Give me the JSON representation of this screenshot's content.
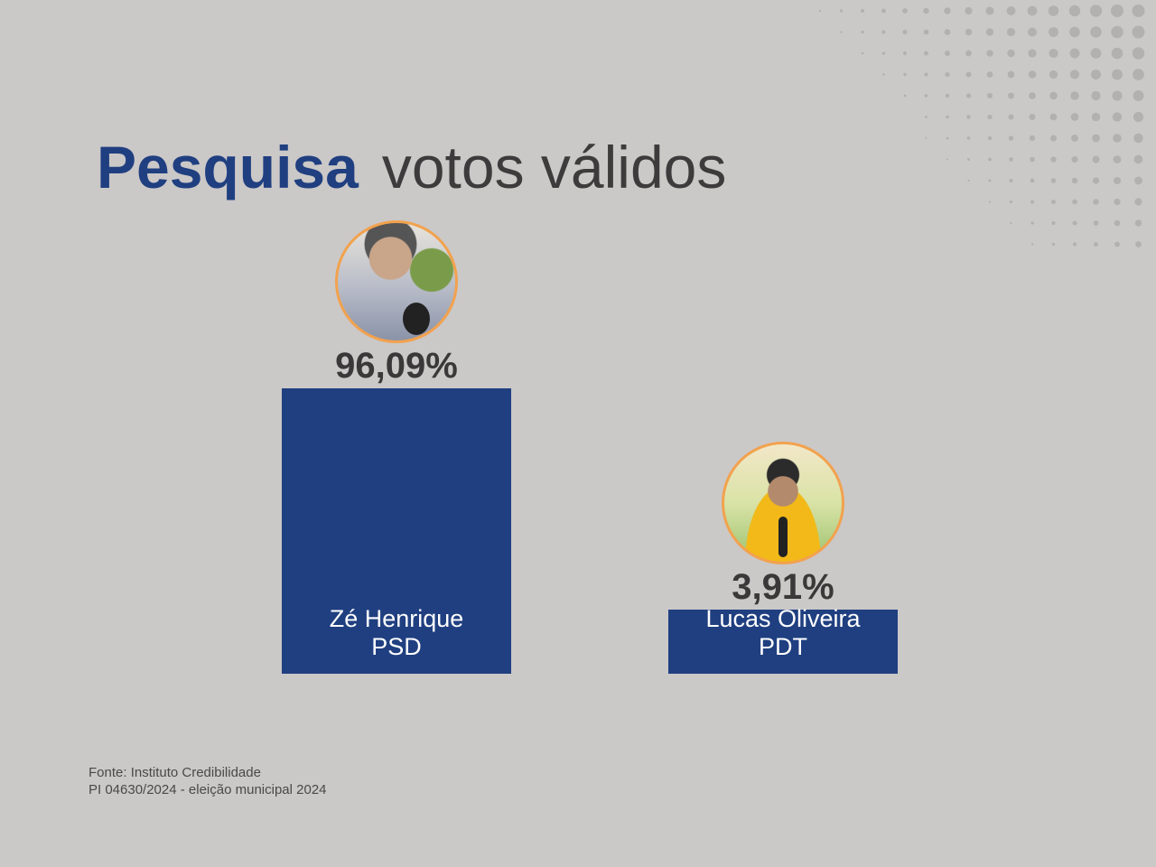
{
  "title": {
    "part1": "Pesquisa",
    "part2": "votos válidos"
  },
  "colors": {
    "bar": "#1f3f80",
    "title_accent": "#1f3f80",
    "avatar_ring": "#f2a24e",
    "background": "#cbc8c8"
  },
  "chart_data": {
    "type": "bar",
    "title": "Pesquisa votos válidos",
    "categories": [
      "Zé Henrique PSD",
      "Lucas Oliveira PDT"
    ],
    "values": [
      96.09,
      3.91
    ],
    "unit": "%",
    "bars": [
      {
        "name": "Zé Henrique",
        "party": "PSD",
        "value": 96.09,
        "label": "96,09%",
        "avatar": "candidate-photo-icon"
      },
      {
        "name": "Lucas Oliveira",
        "party": "PDT",
        "value": 3.91,
        "label": "3,91%",
        "avatar": "candidate-photo-icon"
      }
    ],
    "grid": false,
    "legend": "none"
  },
  "source": {
    "line1": "Fonte: Instituto Credibilidade",
    "line2": "PI 04630/2024 - eleição municipal 2024"
  }
}
